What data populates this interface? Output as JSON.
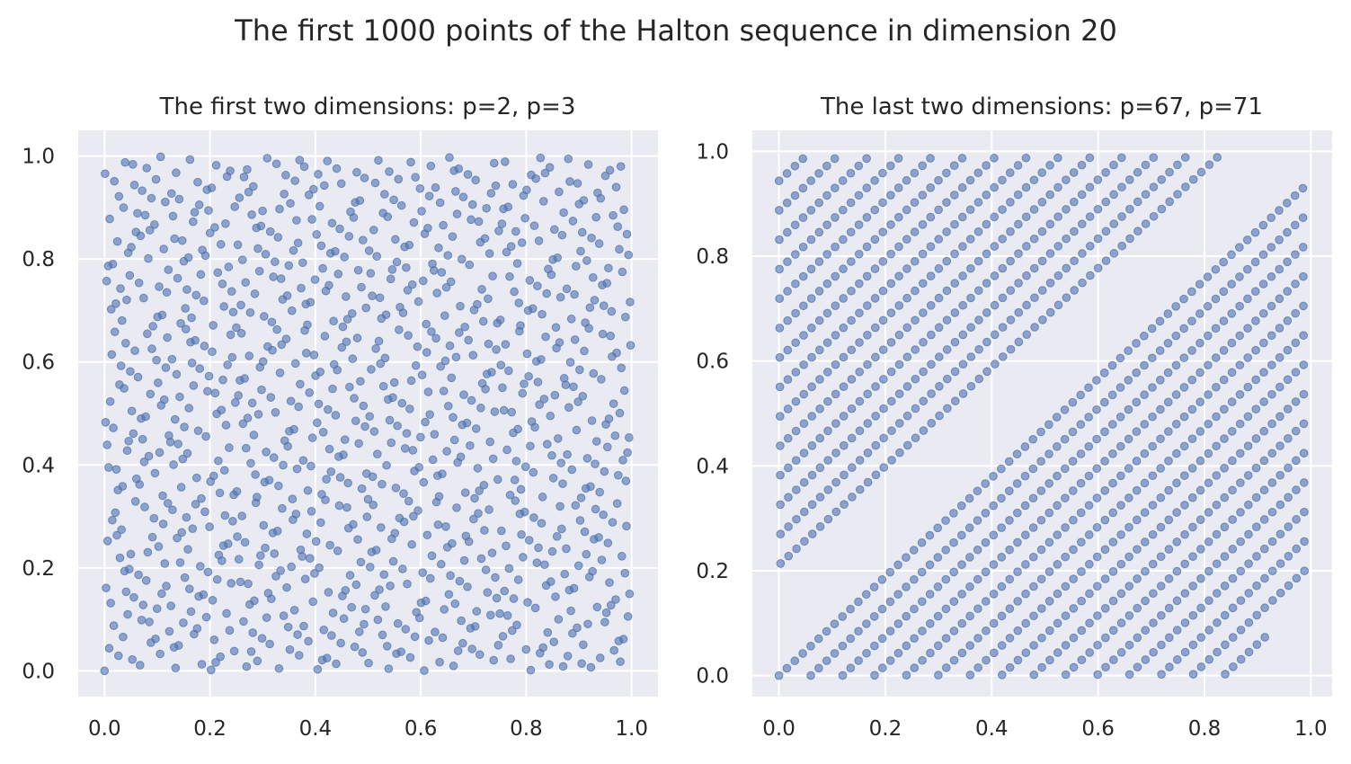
{
  "figure": {
    "title": "The first 1000 points of the Halton sequence in dimension 20",
    "colors": {
      "background": "#ffffff",
      "axes_face": "#eaeaf2",
      "grid": "#ffffff",
      "point": "#4c72b0",
      "text": "#262626"
    }
  },
  "chart_data": [
    {
      "type": "scatter",
      "title": "The first two dimensions: p=2, p=3",
      "xlabel": "",
      "ylabel": "",
      "n_points": 1000,
      "x_base": 2,
      "y_base": 3,
      "sequence_offset": 0,
      "xlim": [
        -0.05,
        1.05
      ],
      "ylim": [
        -0.05,
        1.05
      ],
      "xticks": [
        0.0,
        0.2,
        0.4,
        0.6,
        0.8,
        1.0
      ],
      "yticks": [
        0.0,
        0.2,
        0.4,
        0.6,
        0.8,
        1.0
      ],
      "xticklabels": [
        "0.0",
        "0.2",
        "0.4",
        "0.6",
        "0.8",
        "1.0"
      ],
      "yticklabels": [
        "0.0",
        "0.2",
        "0.4",
        "0.6",
        "0.8",
        "1.0"
      ],
      "grid": true,
      "legend": "none"
    },
    {
      "type": "scatter",
      "title": "The last two dimensions: p=67, p=71",
      "xlabel": "",
      "ylabel": "",
      "n_points": 1000,
      "x_base": 67,
      "y_base": 71,
      "sequence_offset": 0,
      "xlim": [
        -0.05,
        1.04
      ],
      "ylim": [
        -0.04,
        1.04
      ],
      "xticks": [
        0.0,
        0.2,
        0.4,
        0.6,
        0.8,
        1.0
      ],
      "yticks": [
        0.0,
        0.2,
        0.4,
        0.6,
        0.8,
        1.0
      ],
      "xticklabels": [
        "0.0",
        "0.2",
        "0.4",
        "0.6",
        "0.8",
        "1.0"
      ],
      "yticklabels": [
        "0.0",
        "0.2",
        "0.4",
        "0.6",
        "0.8",
        "1.0"
      ],
      "grid": true,
      "legend": "none"
    }
  ]
}
